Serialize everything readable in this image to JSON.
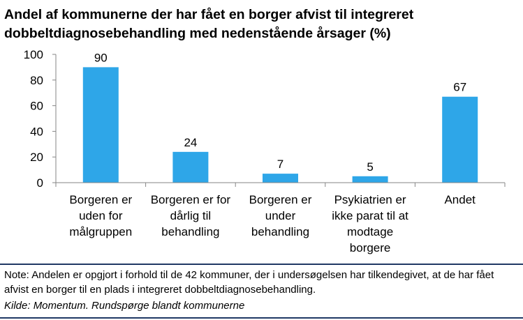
{
  "chart_data": {
    "type": "bar",
    "title": "Andel af kommunerne der har fået en borger afvist til integreret dobbeltdiagnosebehandling med nedenstående årsager (%)",
    "categories": [
      [
        "Borgeren er",
        "uden for",
        "målgruppen"
      ],
      [
        "Borgeren er for",
        "dårlig til",
        "behandling"
      ],
      [
        "Borgeren er",
        "under",
        "behandling"
      ],
      [
        "Psykiatrien er",
        "ikke parat til at",
        "modtage",
        "borgere"
      ],
      [
        "Andet"
      ]
    ],
    "values": [
      90,
      24,
      7,
      5,
      67
    ],
    "ylim": [
      0,
      100
    ],
    "yticks": [
      0,
      20,
      40,
      60,
      80,
      100
    ],
    "data_labels": true,
    "grid": false,
    "bar_color": "#2ea6e8"
  },
  "note": "Note: Andelen er opgjort i forhold til de 42 kommuner, der i undersøgelsen har tilkendegivet, at de har fået afvist en borger til en plads i integreret dobbeltdiagnosebehandling.",
  "source": "Kilde: Momentum. Rundspørge blandt kommunerne"
}
